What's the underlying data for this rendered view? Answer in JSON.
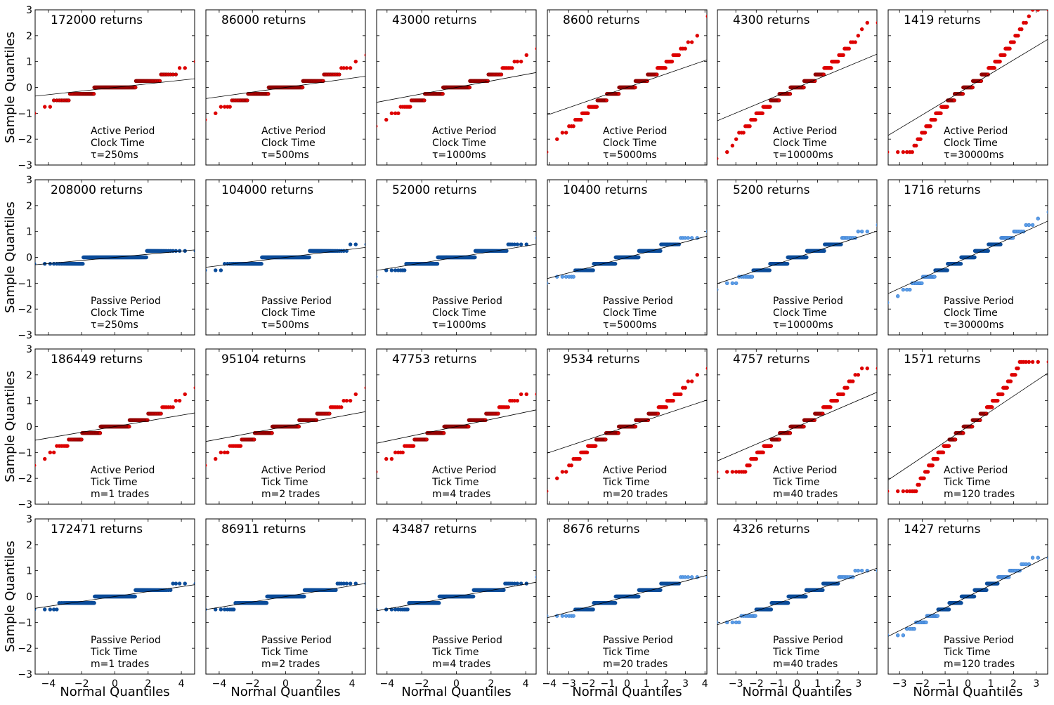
{
  "chart_data": {
    "type": "scatter",
    "description_rows": [
      "Active Period / Clock Time",
      "Passive Period / Clock Time",
      "Active Period / Tick Time",
      "Passive Period / Tick Time"
    ],
    "xlabel": "Normal Quantiles",
    "ylabel": "Sample Quantiles",
    "ylim": [
      -3,
      3
    ],
    "yticks": [
      "−3",
      "−2",
      "−1",
      "0",
      "1",
      "2",
      "3"
    ],
    "colors": {
      "active": "#dd0000",
      "active_edge": "#8b0000",
      "passive": "#5b9ee8",
      "passive_dense": "#0b4c9a",
      "line": "#000000"
    },
    "col_xlims": [
      [
        -4.8,
        4.8
      ],
      [
        -4.8,
        4.8
      ],
      [
        -4.6,
        4.6
      ],
      [
        -4.1,
        4.1
      ],
      [
        -3.9,
        3.9
      ],
      [
        -3.5,
        3.5
      ]
    ],
    "col_xticks": [
      [
        "−4",
        "−2",
        "0",
        "2",
        "4"
      ],
      [
        "−4",
        "−2",
        "0",
        "2",
        "4"
      ],
      [
        "−4",
        "−2",
        "0",
        "2",
        "4"
      ],
      [
        "−4",
        "−3",
        "−2",
        "−1",
        "0",
        "1",
        "2",
        "3",
        "4"
      ],
      [
        "−3",
        "−2",
        "−1",
        "0",
        "1",
        "2",
        "3"
      ],
      [
        "−3",
        "−2",
        "−1",
        "0",
        "1",
        "2",
        "3"
      ]
    ],
    "col_xtick_values": [
      [
        -4,
        -2,
        0,
        2,
        4
      ],
      [
        -4,
        -2,
        0,
        2,
        4
      ],
      [
        -4,
        -2,
        0,
        2,
        4
      ],
      [
        -4,
        -3,
        -2,
        -1,
        0,
        1,
        2,
        3,
        4
      ],
      [
        -3,
        -2,
        -1,
        0,
        1,
        2,
        3
      ],
      [
        -3,
        -2,
        -1,
        0,
        1,
        2,
        3
      ]
    ],
    "panels": [
      [
        {
          "returns": "172000 returns",
          "lines": [
            "Active Period",
            "Clock Time",
            "τ=250ms"
          ],
          "group": "active",
          "step": 0.25,
          "slope": 0.07,
          "min": -2.0,
          "max": 2.5
        },
        {
          "returns": "86000 returns",
          "lines": [
            "Active Period",
            "Clock Time",
            "τ=500ms"
          ],
          "group": "active",
          "step": 0.25,
          "slope": 0.09,
          "min": -1.75,
          "max": 2.5
        },
        {
          "returns": "43000 returns",
          "lines": [
            "Active Period",
            "Clock Time",
            "τ=1000ms"
          ],
          "group": "active",
          "step": 0.25,
          "slope": 0.125,
          "min": -1.5,
          "max": 2.75
        },
        {
          "returns": "8600 returns",
          "lines": [
            "Active Period",
            "Clock Time",
            "τ=5000ms"
          ],
          "group": "active",
          "step": 0.25,
          "slope": 0.26,
          "min": -2.5,
          "max": 2.75
        },
        {
          "returns": "4300 returns",
          "lines": [
            "Active Period",
            "Clock Time",
            "τ=10000ms"
          ],
          "group": "active",
          "step": 0.25,
          "slope": 0.33,
          "min": -2.75,
          "max": 2.5
        },
        {
          "returns": "1419 returns",
          "lines": [
            "Active Period",
            "Clock Time",
            "τ=30000ms"
          ],
          "group": "active",
          "step": 0.25,
          "slope": 0.53,
          "min": -2.5,
          "max": 3.0
        }
      ],
      [
        {
          "returns": "208000 returns",
          "lines": [
            "Passive Period",
            "Clock Time",
            "τ=250ms"
          ],
          "group": "passive",
          "step": 0.25,
          "slope": 0.06,
          "min": -0.75,
          "max": 0.75
        },
        {
          "returns": "104000 returns",
          "lines": [
            "Passive Period",
            "Clock Time",
            "τ=500ms"
          ],
          "group": "passive",
          "step": 0.25,
          "slope": 0.08,
          "min": -0.75,
          "max": 1.0
        },
        {
          "returns": "52000 returns",
          "lines": [
            "Passive Period",
            "Clock Time",
            "τ=1000ms"
          ],
          "group": "passive",
          "step": 0.25,
          "slope": 0.11,
          "min": -0.75,
          "max": 1.0
        },
        {
          "returns": "10400 returns",
          "lines": [
            "Passive Period",
            "Clock Time",
            "τ=5000ms"
          ],
          "group": "passive",
          "step": 0.25,
          "slope": 0.2,
          "min": -1.25,
          "max": 1.25
        },
        {
          "returns": "5200 returns",
          "lines": [
            "Passive Period",
            "Clock Time",
            "τ=10000ms"
          ],
          "group": "passive",
          "step": 0.25,
          "slope": 0.26,
          "min": -1.75,
          "max": 1.5
        },
        {
          "returns": "1716 returns",
          "lines": [
            "Passive Period",
            "Clock Time",
            "τ=30000ms"
          ],
          "group": "passive",
          "step": 0.25,
          "slope": 0.4,
          "min": -1.75,
          "max": 2.5
        }
      ],
      [
        {
          "returns": "186449 returns",
          "lines": [
            "Active Period",
            "Tick Time",
            "m=1 trades"
          ],
          "group": "active",
          "step": 0.25,
          "slope": 0.11,
          "min": -2.0,
          "max": 1.5
        },
        {
          "returns": "95104 returns",
          "lines": [
            "Active Period",
            "Tick Time",
            "m=2 trades"
          ],
          "group": "active",
          "step": 0.25,
          "slope": 0.12,
          "min": -2.25,
          "max": 1.5
        },
        {
          "returns": "47753 returns",
          "lines": [
            "Active Period",
            "Tick Time",
            "m=4 trades"
          ],
          "group": "active",
          "step": 0.25,
          "slope": 0.14,
          "min": -2.25,
          "max": 1.25
        },
        {
          "returns": "9534 returns",
          "lines": [
            "Active Period",
            "Tick Time",
            "m=20 trades"
          ],
          "group": "active",
          "step": 0.25,
          "slope": 0.25,
          "min": -2.75,
          "max": 2.25
        },
        {
          "returns": "4757 returns",
          "lines": [
            "Active Period",
            "Tick Time",
            "m=40 trades"
          ],
          "group": "active",
          "step": 0.25,
          "slope": 0.34,
          "min": -1.75,
          "max": 2.25
        },
        {
          "returns": "1571 returns",
          "lines": [
            "Active Period",
            "Tick Time",
            "m=120 trades"
          ],
          "group": "active",
          "step": 0.25,
          "slope": 0.59,
          "min": -2.5,
          "max": 2.5
        }
      ],
      [
        {
          "returns": "172471 returns",
          "lines": [
            "Passive Period",
            "Tick Time",
            "m=1 trades"
          ],
          "group": "passive",
          "step": 0.25,
          "slope": 0.095,
          "min": -0.5,
          "max": 0.5
        },
        {
          "returns": "86911 returns",
          "lines": [
            "Passive Period",
            "Tick Time",
            "m=2 trades"
          ],
          "group": "passive",
          "step": 0.25,
          "slope": 0.105,
          "min": -0.5,
          "max": 0.5
        },
        {
          "returns": "43487 returns",
          "lines": [
            "Passive Period",
            "Tick Time",
            "m=4 trades"
          ],
          "group": "passive",
          "step": 0.25,
          "slope": 0.12,
          "min": -0.5,
          "max": 0.75
        },
        {
          "returns": "8676 returns",
          "lines": [
            "Passive Period",
            "Tick Time",
            "m=20 trades"
          ],
          "group": "passive",
          "step": 0.25,
          "slope": 0.2,
          "min": -0.75,
          "max": 0.75
        },
        {
          "returns": "4326 returns",
          "lines": [
            "Passive Period",
            "Tick Time",
            "m=40 trades"
          ],
          "group": "passive",
          "step": 0.25,
          "slope": 0.28,
          "min": -1.0,
          "max": 1.0
        },
        {
          "returns": "1427 returns",
          "lines": [
            "Passive Period",
            "Tick Time",
            "m=120 trades"
          ],
          "group": "passive",
          "step": 0.25,
          "slope": 0.44,
          "min": -1.5,
          "max": 1.5
        }
      ]
    ]
  }
}
